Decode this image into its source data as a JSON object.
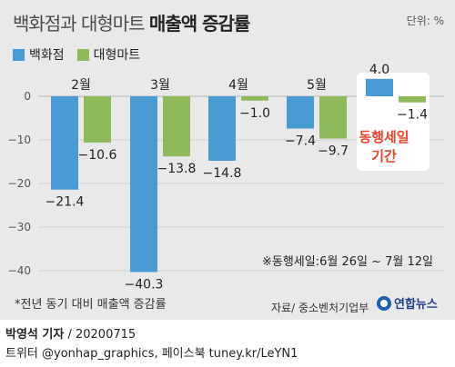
{
  "header": {
    "title_light": "백화점과 대형마트",
    "title_bold": "매출액 증감률",
    "unit": "단위: %"
  },
  "legend": [
    {
      "label": "백화점",
      "color": "#4a9bd4"
    },
    {
      "label": "대형마트",
      "color": "#8fba5c"
    }
  ],
  "annotation": {
    "note": "※동행세일:6월 26일 ~ 7월 12일",
    "highlight_line1": "동행세일",
    "highlight_line2": "기간",
    "highlight_color": "#e8452c"
  },
  "footer": {
    "footnote": "*전년 동기 대비 매출액 증감률",
    "source": "자료/ 중소벤처기업부",
    "logo_text": "연합뉴스",
    "author": "박영석 기자",
    "date": "20200715",
    "social": "트위터 @yonhap_graphics, 페이스북 tuney.kr/LeYN1"
  },
  "chart_data": {
    "type": "bar",
    "categories": [
      "2월",
      "3월",
      "4월",
      "5월",
      ""
    ],
    "series": [
      {
        "name": "백화점",
        "values": [
          -21.4,
          -40.3,
          -14.8,
          -7.4,
          4.0
        ],
        "labels": [
          "−21.4",
          "−40.3",
          "−14.8",
          "−7.4",
          "4.0"
        ]
      },
      {
        "name": "대형마트",
        "values": [
          -10.6,
          -13.8,
          -1.0,
          -9.7,
          -1.4
        ],
        "labels": [
          "−10.6",
          "−13.8",
          "−1.0",
          "−9.7",
          "−1.4"
        ]
      }
    ],
    "yticks": [
      0,
      -10,
      -20,
      -30,
      -40
    ],
    "ytick_labels": [
      "0",
      "−10",
      "−20",
      "−30",
      "−40"
    ],
    "ylim": [
      -40.3,
      4.0
    ],
    "colors": {
      "dept": "#4a9bd4",
      "mart": "#8fba5c"
    }
  }
}
